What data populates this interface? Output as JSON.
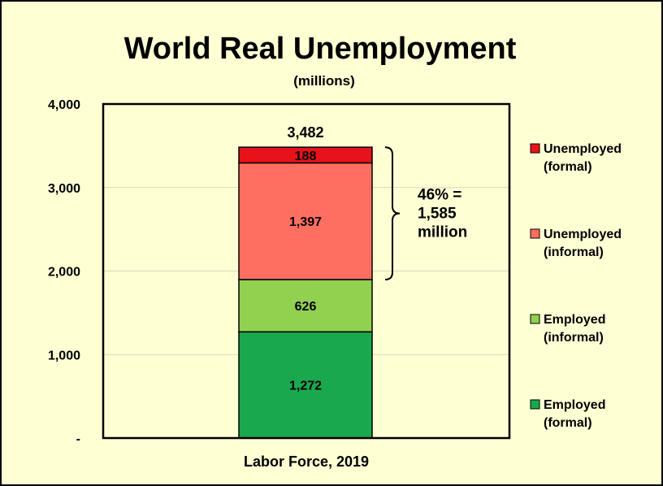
{
  "chart_data": {
    "type": "bar",
    "stacked": true,
    "title": "World Real Unemployment",
    "subtitle": "(millions)",
    "categories": [
      "Labor Force, 2019"
    ],
    "ylim": [
      0,
      4000
    ],
    "yticks": [
      {
        "value": 0,
        "label": "-"
      },
      {
        "value": 1000,
        "label": "1,000"
      },
      {
        "value": 2000,
        "label": "2,000"
      },
      {
        "value": 3000,
        "label": "3,000"
      },
      {
        "value": 4000,
        "label": "4,000"
      }
    ],
    "grid": true,
    "legend_position": "right",
    "series": [
      {
        "name": "Employed (formal)",
        "legend_lines": [
          "Employed",
          "(formal)"
        ],
        "values": [
          1272
        ],
        "label": "1,272",
        "color": "#1aa84f"
      },
      {
        "name": "Employed (informal)",
        "legend_lines": [
          "Employed",
          "(informal)"
        ],
        "values": [
          626
        ],
        "label": "626",
        "color": "#92d050"
      },
      {
        "name": "Unemployed (informal)",
        "legend_lines": [
          "Unemployed",
          "(informal)"
        ],
        "values": [
          1397
        ],
        "label": "1,397",
        "color": "#ff6f61"
      },
      {
        "name": "Unemployed (formal)",
        "legend_lines": [
          "Unemployed",
          "(formal)"
        ],
        "values": [
          188
        ],
        "label": "188",
        "color": "#e8121a"
      }
    ],
    "total": {
      "value": 3482,
      "label": "3,482"
    },
    "annotation": {
      "lines": [
        "46% =",
        "1,585",
        "million"
      ],
      "from": 1898,
      "to": 3482
    }
  }
}
